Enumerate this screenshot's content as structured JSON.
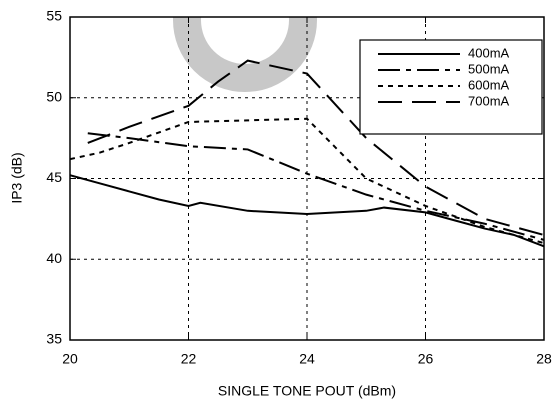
{
  "chart_data": {
    "type": "line",
    "xlabel": "SINGLE TONE POUT (dBm)",
    "ylabel": "IP3 (dB)",
    "xlim": [
      20,
      28
    ],
    "xticks": [
      20,
      22,
      24,
      26,
      28
    ],
    "ylim": [
      35,
      55
    ],
    "yticks": [
      35,
      40,
      45,
      50,
      55
    ],
    "grid": true,
    "legend": "upper right",
    "series": [
      {
        "name": "400mA",
        "color": "#000000",
        "dash": "solid",
        "x": [
          20,
          20.5,
          21,
          21.5,
          22,
          22.2,
          23,
          24,
          25,
          25.3,
          26,
          26.5,
          27,
          27.5,
          28
        ],
        "values": [
          45.2,
          44.7,
          44.2,
          43.7,
          43.3,
          43.5,
          43.0,
          42.8,
          43.0,
          43.2,
          42.9,
          42.4,
          41.9,
          41.5,
          40.8
        ]
      },
      {
        "name": "500mA",
        "color": "#000000",
        "dash": "dash-dot",
        "x": [
          20.3,
          21,
          22,
          23,
          24,
          25,
          26,
          27,
          28
        ],
        "values": [
          47.8,
          47.5,
          47.0,
          46.8,
          45.3,
          44.0,
          43.0,
          42.2,
          41.2
        ]
      },
      {
        "name": "600mA",
        "color": "#000000",
        "dash": "dot",
        "x": [
          20,
          20.5,
          21,
          22,
          23,
          24,
          25,
          26,
          27,
          28
        ],
        "values": [
          46.2,
          46.6,
          47.2,
          48.5,
          48.6,
          48.7,
          45.0,
          43.3,
          42.0,
          41.0
        ]
      },
      {
        "name": "700mA",
        "color": "#000000",
        "dash": "dash",
        "x": [
          20.3,
          21,
          22,
          22.5,
          23,
          24,
          25,
          26,
          27,
          28
        ],
        "values": [
          47.2,
          48.2,
          49.5,
          51.0,
          52.3,
          51.5,
          47.5,
          44.5,
          42.5,
          41.5
        ]
      }
    ]
  }
}
